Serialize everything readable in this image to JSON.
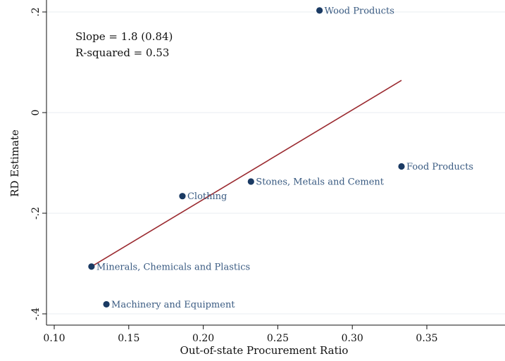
{
  "chart_data": {
    "type": "scatter",
    "xlabel": "Out-of-state Procurement Ratio",
    "ylabel": "RD Estimate",
    "xlim": [
      0.095,
      0.4
    ],
    "ylim": [
      -0.42,
      0.22
    ],
    "x_ticks": [
      {
        "value": 0.1,
        "label": "0.10"
      },
      {
        "value": 0.15,
        "label": "0.15"
      },
      {
        "value": 0.2,
        "label": "0.20"
      },
      {
        "value": 0.25,
        "label": "0.25"
      },
      {
        "value": 0.3,
        "label": "0.30"
      },
      {
        "value": 0.35,
        "label": "0.35"
      }
    ],
    "y_ticks": [
      {
        "value": 0.2,
        "label": ".2"
      },
      {
        "value": 0.0,
        "label": "0"
      },
      {
        "value": -0.2,
        "label": "-.2"
      },
      {
        "value": -0.4,
        "label": "-.4"
      }
    ],
    "grid": "horizontal",
    "points": [
      {
        "label": "Wood Products",
        "x": 0.278,
        "y": 0.203
      },
      {
        "label": "Food Products",
        "x": 0.333,
        "y": -0.107
      },
      {
        "label": "Stones, Metals and Cement",
        "x": 0.232,
        "y": -0.137
      },
      {
        "label": "Clothing",
        "x": 0.186,
        "y": -0.166
      },
      {
        "label": "Minerals, Chemicals and Plastics",
        "x": 0.125,
        "y": -0.306
      },
      {
        "label": "Machinery and Equipment",
        "x": 0.135,
        "y": -0.381
      }
    ],
    "fit_line": {
      "x": [
        0.125,
        0.333
      ],
      "y": [
        -0.306,
        0.064
      ]
    },
    "annotations": [
      "Slope = 1.8 (0.84)",
      "R-squared = 0.53"
    ]
  },
  "colors": {
    "marker": "#1a3a63",
    "point_label": "#3a5b82",
    "fit_line": "#9b2a30",
    "grid": "#e9eef2",
    "axis": "#111111"
  }
}
